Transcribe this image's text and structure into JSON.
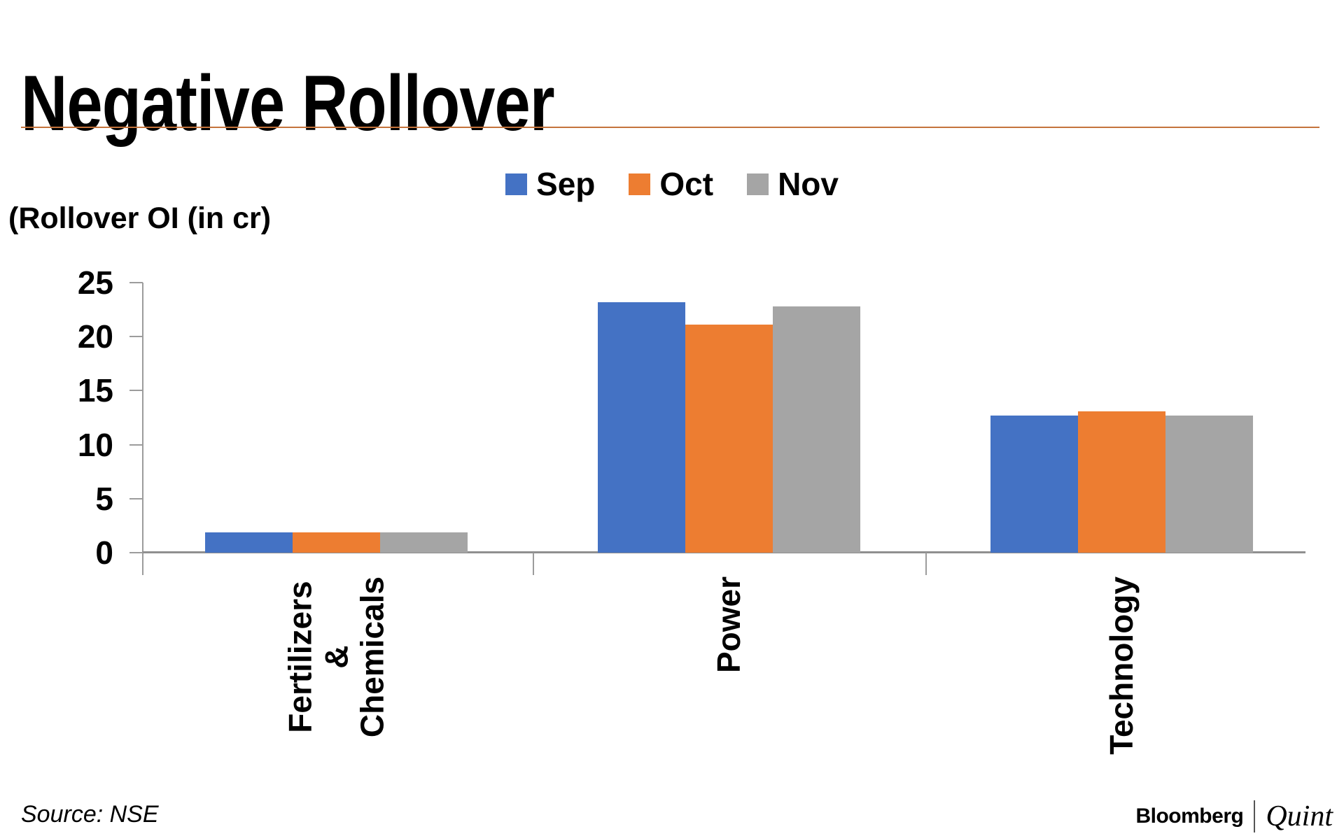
{
  "title": "Negative Rollover",
  "accent_rule_color": "#c4743c",
  "y_axis_label": "(Rollover OI (in cr)",
  "source_note": "Source: NSE",
  "branding": {
    "primary": "Bloomberg",
    "secondary": "Quint"
  },
  "chart_data": {
    "type": "bar",
    "title": "Negative Rollover",
    "xlabel": "",
    "ylabel": "(Rollover OI (in cr)",
    "categories": [
      "Fertilizers &\nChemicals",
      "Power",
      "Technology"
    ],
    "series": [
      {
        "name": "Sep",
        "color": "#4472c4",
        "values": [
          1.9,
          23.2,
          12.7
        ]
      },
      {
        "name": "Oct",
        "color": "#ed7d31",
        "values": [
          1.9,
          21.1,
          13.1
        ]
      },
      {
        "name": "Nov",
        "color": "#a5a5a5",
        "values": [
          1.9,
          22.8,
          12.7
        ]
      }
    ],
    "ylim": [
      0,
      25
    ],
    "yticks": [
      0,
      5,
      10,
      15,
      20,
      25
    ],
    "grid": false,
    "legend_position": "top-center",
    "bar_label_rotation_deg": 90
  }
}
